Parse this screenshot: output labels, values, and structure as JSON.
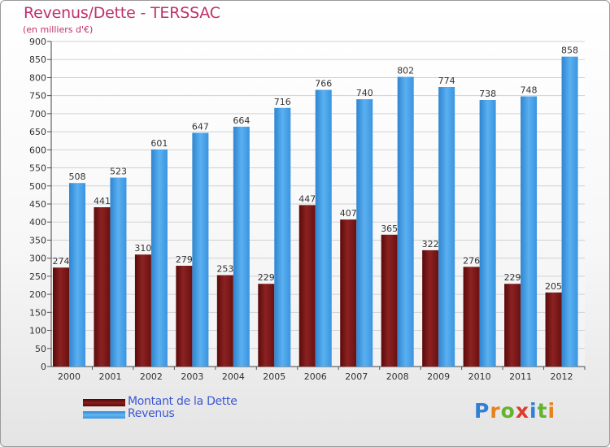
{
  "header": {
    "title": "Revenus/Dette - TERSSAC",
    "subtitle": "(en milliers d'€)"
  },
  "legend": {
    "debt_label": "Montant de la Dette",
    "revenue_label": "Revenus"
  },
  "logo": {
    "letters": [
      "P",
      "r",
      "o",
      "x",
      "i",
      "t",
      "i"
    ],
    "colors": [
      "#2f7fd6",
      "#e8821e",
      "#63b32e",
      "#e03a2b",
      "#2f7fd6",
      "#63b32e",
      "#e8821e"
    ]
  },
  "colors": {
    "debt": "#7a1515",
    "revenue": "#3f9be6",
    "title": "#c0306a",
    "legend_text": "#3a57d6"
  },
  "chart_data": {
    "type": "bar",
    "title": "Revenus/Dette - TERSSAC",
    "subtitle": "(en milliers d'€)",
    "categories": [
      "2000",
      "2001",
      "2002",
      "2003",
      "2004",
      "2005",
      "2006",
      "2007",
      "2008",
      "2009",
      "2010",
      "2011",
      "2012"
    ],
    "series": [
      {
        "name": "Montant de la Dette",
        "color": "#7a1515",
        "values": [
          274,
          441,
          310,
          279,
          253,
          229,
          447,
          407,
          365,
          322,
          276,
          229,
          205
        ]
      },
      {
        "name": "Revenus",
        "color": "#3f9be6",
        "values": [
          508,
          523,
          601,
          647,
          664,
          716,
          766,
          740,
          802,
          774,
          738,
          748,
          858
        ]
      }
    ],
    "ylim": [
      0,
      900
    ],
    "ytick_step": 50,
    "grid": true,
    "legend_position": "bottom-left"
  }
}
